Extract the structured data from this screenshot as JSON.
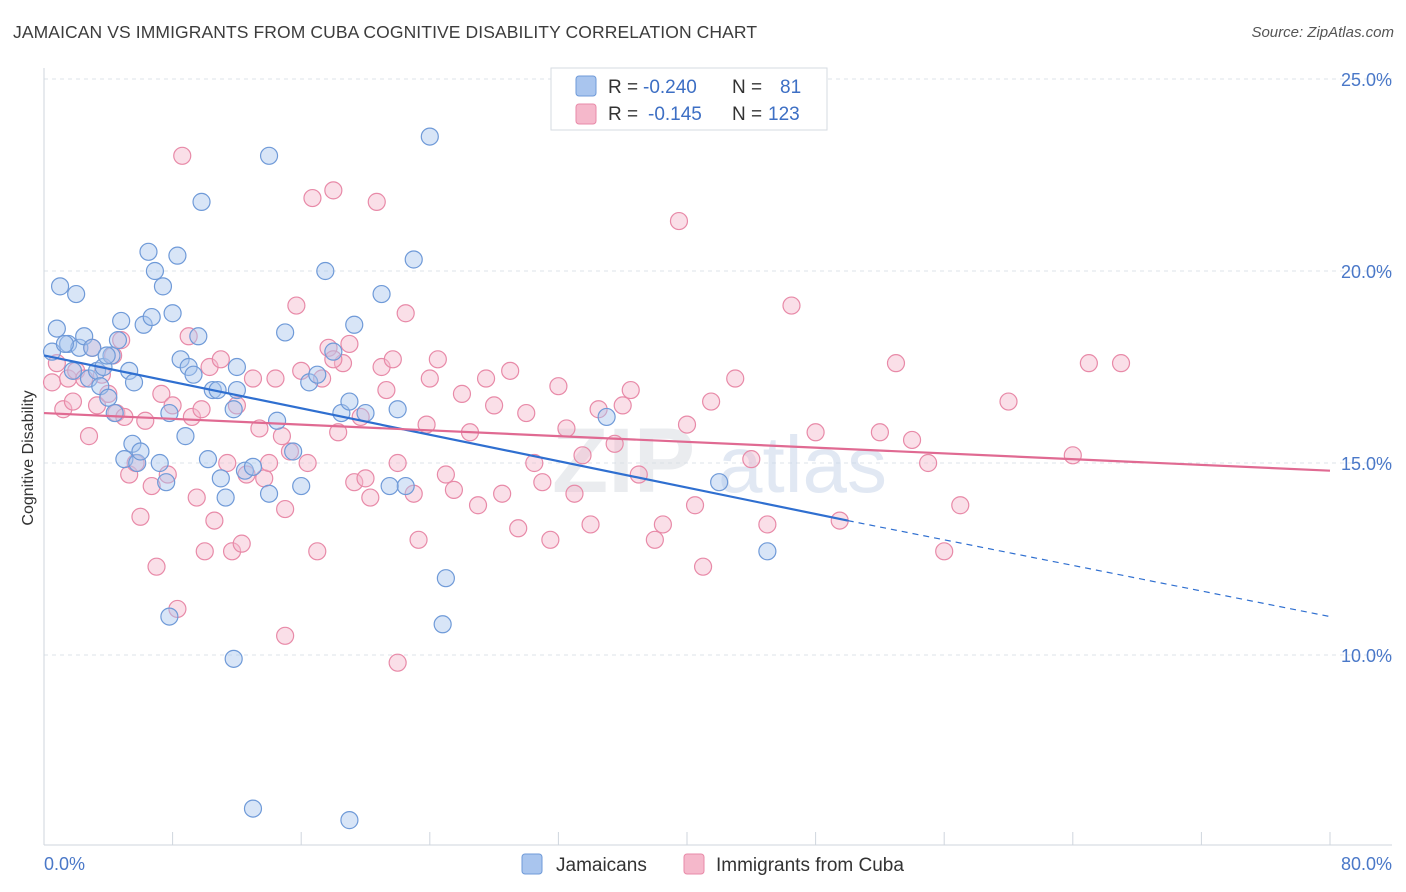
{
  "header": {
    "title": "JAMAICAN VS IMMIGRANTS FROM CUBA COGNITIVE DISABILITY CORRELATION CHART",
    "source": "Source: ZipAtlas.com"
  },
  "watermark": {
    "zip": "ZIP",
    "atlas": "atlas"
  },
  "legend_box": {
    "rows": [
      {
        "r_label": "R =",
        "r_value": "-0.240",
        "n_label": "N =",
        "n_value": "81"
      },
      {
        "r_label": "R =",
        "r_value": "-0.145",
        "n_label": "N =",
        "n_value": "123"
      }
    ]
  },
  "colors": {
    "jamaican_fill": "#a9c5ee",
    "jamaican_stroke": "#6f9ad8",
    "jamaican_line": "#2f6fd0",
    "cuba_fill": "#f5b8cb",
    "cuba_stroke": "#e88aa8",
    "cuba_line": "#e06a92",
    "grid": "#dde3ea",
    "tick_text": "#4a78c8"
  },
  "chart_data": {
    "type": "scatter",
    "title": "JAMAICAN VS IMMIGRANTS FROM CUBA COGNITIVE DISABILITY CORRELATION CHART",
    "xlabel": "",
    "ylabel": "Cognitive Disability",
    "xlim": [
      0,
      80
    ],
    "ylim": [
      5,
      26
    ],
    "y_ticks": [
      10,
      15,
      20,
      25
    ],
    "y_tick_labels": [
      "10.0%",
      "15.0%",
      "20.0%",
      "25.0%"
    ],
    "x_tick_labels": [
      "0.0%",
      "80.0%"
    ],
    "grid": true,
    "legend_position": "top-center",
    "series": [
      {
        "name": "Jamaicans",
        "r": -0.24,
        "n": 81,
        "trend": {
          "x0": 0,
          "y0": 17.8,
          "x1": 50,
          "y1": 13.5,
          "dashed_to_x": 80,
          "dashed_to_y": 11.0
        },
        "points": [
          [
            0.5,
            17.9
          ],
          [
            0.8,
            18.5
          ],
          [
            1.0,
            19.6
          ],
          [
            1.5,
            18.1
          ],
          [
            1.8,
            17.4
          ],
          [
            2.0,
            19.4
          ],
          [
            2.2,
            18.0
          ],
          [
            2.5,
            18.3
          ],
          [
            2.8,
            17.2
          ],
          [
            3.0,
            18.0
          ],
          [
            3.3,
            17.4
          ],
          [
            3.5,
            17.0
          ],
          [
            3.7,
            17.5
          ],
          [
            4.0,
            16.7
          ],
          [
            4.2,
            17.8
          ],
          [
            4.4,
            16.3
          ],
          [
            4.6,
            18.2
          ],
          [
            4.8,
            18.7
          ],
          [
            5.0,
            15.1
          ],
          [
            5.3,
            17.4
          ],
          [
            5.5,
            15.5
          ],
          [
            5.6,
            17.1
          ],
          [
            5.8,
            15.0
          ],
          [
            6.0,
            15.3
          ],
          [
            6.2,
            18.6
          ],
          [
            6.5,
            20.5
          ],
          [
            6.7,
            18.8
          ],
          [
            6.9,
            20.0
          ],
          [
            7.2,
            15.0
          ],
          [
            7.4,
            19.6
          ],
          [
            7.6,
            14.5
          ],
          [
            7.8,
            16.3
          ],
          [
            8.0,
            18.9
          ],
          [
            8.3,
            20.4
          ],
          [
            8.5,
            17.7
          ],
          [
            8.8,
            15.7
          ],
          [
            9.0,
            17.5
          ],
          [
            9.3,
            17.3
          ],
          [
            9.6,
            18.3
          ],
          [
            9.8,
            21.8
          ],
          [
            10.2,
            15.1
          ],
          [
            10.5,
            16.9
          ],
          [
            10.8,
            16.9
          ],
          [
            11.0,
            14.6
          ],
          [
            11.3,
            14.1
          ],
          [
            11.8,
            16.4
          ],
          [
            12.0,
            17.5
          ],
          [
            12.5,
            14.8
          ],
          [
            13.0,
            14.9
          ],
          [
            14.0,
            14.2
          ],
          [
            14.5,
            16.1
          ],
          [
            15.0,
            18.4
          ],
          [
            15.5,
            15.3
          ],
          [
            16.0,
            14.4
          ],
          [
            16.5,
            17.1
          ],
          [
            17.0,
            17.3
          ],
          [
            17.5,
            20.0
          ],
          [
            18.0,
            17.9
          ],
          [
            18.5,
            16.3
          ],
          [
            19.0,
            16.6
          ],
          [
            19.3,
            18.6
          ],
          [
            20.0,
            16.3
          ],
          [
            21.0,
            19.4
          ],
          [
            22.0,
            16.4
          ],
          [
            22.5,
            14.4
          ],
          [
            23.0,
            20.3
          ],
          [
            24.0,
            23.5
          ],
          [
            25.0,
            12.0
          ],
          [
            24.8,
            10.8
          ],
          [
            14.0,
            23.0
          ],
          [
            21.5,
            14.4
          ],
          [
            35.0,
            16.2
          ],
          [
            42.0,
            14.5
          ],
          [
            45.0,
            12.7
          ],
          [
            7.8,
            11.0
          ],
          [
            11.8,
            9.9
          ],
          [
            13.0,
            6.0
          ],
          [
            19.0,
            5.7
          ],
          [
            3.9,
            17.8
          ],
          [
            12.0,
            16.9
          ],
          [
            1.3,
            18.1
          ]
        ]
      },
      {
        "name": "Immigrants from Cuba",
        "r": -0.145,
        "n": 123,
        "trend": {
          "x0": 0,
          "y0": 16.3,
          "x1": 80,
          "y1": 14.8
        },
        "points": [
          [
            0.5,
            17.1
          ],
          [
            0.8,
            17.6
          ],
          [
            1.2,
            16.4
          ],
          [
            1.5,
            17.2
          ],
          [
            1.8,
            16.6
          ],
          [
            2.0,
            17.4
          ],
          [
            2.5,
            17.2
          ],
          [
            2.8,
            15.7
          ],
          [
            3.0,
            18.0
          ],
          [
            3.3,
            16.5
          ],
          [
            3.6,
            17.3
          ],
          [
            4.0,
            16.8
          ],
          [
            4.3,
            17.8
          ],
          [
            4.5,
            16.3
          ],
          [
            4.8,
            18.2
          ],
          [
            5.0,
            16.2
          ],
          [
            5.3,
            14.7
          ],
          [
            5.7,
            15.0
          ],
          [
            6.0,
            13.6
          ],
          [
            6.3,
            16.1
          ],
          [
            6.7,
            14.4
          ],
          [
            7.0,
            12.3
          ],
          [
            7.3,
            16.8
          ],
          [
            7.7,
            14.7
          ],
          [
            8.0,
            16.5
          ],
          [
            8.3,
            11.2
          ],
          [
            8.6,
            23.0
          ],
          [
            9.0,
            18.3
          ],
          [
            9.2,
            16.2
          ],
          [
            9.5,
            14.1
          ],
          [
            9.8,
            16.4
          ],
          [
            10.0,
            12.7
          ],
          [
            10.3,
            17.5
          ],
          [
            10.6,
            13.5
          ],
          [
            11.0,
            17.7
          ],
          [
            11.4,
            15.0
          ],
          [
            11.7,
            12.7
          ],
          [
            12.0,
            16.5
          ],
          [
            12.3,
            12.9
          ],
          [
            12.6,
            14.7
          ],
          [
            13.0,
            17.2
          ],
          [
            13.4,
            15.9
          ],
          [
            13.7,
            14.6
          ],
          [
            14.0,
            15.0
          ],
          [
            14.4,
            17.2
          ],
          [
            14.8,
            15.7
          ],
          [
            15.0,
            13.8
          ],
          [
            15.3,
            15.3
          ],
          [
            15.7,
            19.1
          ],
          [
            16.0,
            17.4
          ],
          [
            16.4,
            15.0
          ],
          [
            16.7,
            21.9
          ],
          [
            17.0,
            12.7
          ],
          [
            17.3,
            17.2
          ],
          [
            17.7,
            18.0
          ],
          [
            18.0,
            22.1
          ],
          [
            18.3,
            15.8
          ],
          [
            18.6,
            17.6
          ],
          [
            19.0,
            18.1
          ],
          [
            19.3,
            14.5
          ],
          [
            19.7,
            16.2
          ],
          [
            20.0,
            14.6
          ],
          [
            20.3,
            14.1
          ],
          [
            20.7,
            21.8
          ],
          [
            21.0,
            17.5
          ],
          [
            21.3,
            16.9
          ],
          [
            21.7,
            17.7
          ],
          [
            22.0,
            15.0
          ],
          [
            22.5,
            18.9
          ],
          [
            23.0,
            14.2
          ],
          [
            23.3,
            13.0
          ],
          [
            23.8,
            16.0
          ],
          [
            24.0,
            17.2
          ],
          [
            24.5,
            17.7
          ],
          [
            25.0,
            14.7
          ],
          [
            25.5,
            14.3
          ],
          [
            26.0,
            16.8
          ],
          [
            26.5,
            15.8
          ],
          [
            27.0,
            13.9
          ],
          [
            27.5,
            17.2
          ],
          [
            28.0,
            16.5
          ],
          [
            28.5,
            14.2
          ],
          [
            29.0,
            17.4
          ],
          [
            29.5,
            13.3
          ],
          [
            30.0,
            16.3
          ],
          [
            30.5,
            15.0
          ],
          [
            31.0,
            14.5
          ],
          [
            31.5,
            13.0
          ],
          [
            32.0,
            17.0
          ],
          [
            32.5,
            15.9
          ],
          [
            33.0,
            14.2
          ],
          [
            33.5,
            15.2
          ],
          [
            34.0,
            13.4
          ],
          [
            34.5,
            16.4
          ],
          [
            35.5,
            15.5
          ],
          [
            36.0,
            16.5
          ],
          [
            36.5,
            16.9
          ],
          [
            37.0,
            14.7
          ],
          [
            38.0,
            13.0
          ],
          [
            38.5,
            13.4
          ],
          [
            39.5,
            21.3
          ],
          [
            40.0,
            16.0
          ],
          [
            40.5,
            13.9
          ],
          [
            41.0,
            12.3
          ],
          [
            41.5,
            16.6
          ],
          [
            43.0,
            17.2
          ],
          [
            44.0,
            15.1
          ],
          [
            45.0,
            13.4
          ],
          [
            46.5,
            19.1
          ],
          [
            48.0,
            15.8
          ],
          [
            49.5,
            13.5
          ],
          [
            52.0,
            15.8
          ],
          [
            53.0,
            17.6
          ],
          [
            54.0,
            15.6
          ],
          [
            55.0,
            15.0
          ],
          [
            56.0,
            12.7
          ],
          [
            57.0,
            13.9
          ],
          [
            60.0,
            16.6
          ],
          [
            64.0,
            15.2
          ],
          [
            65.0,
            17.6
          ],
          [
            67.0,
            17.6
          ],
          [
            22.0,
            9.8
          ],
          [
            15.0,
            10.5
          ],
          [
            18.0,
            17.7
          ]
        ]
      }
    ]
  },
  "bottom_legend": {
    "items": [
      {
        "label": "Jamaicans"
      },
      {
        "label": "Immigrants from Cuba"
      }
    ]
  }
}
